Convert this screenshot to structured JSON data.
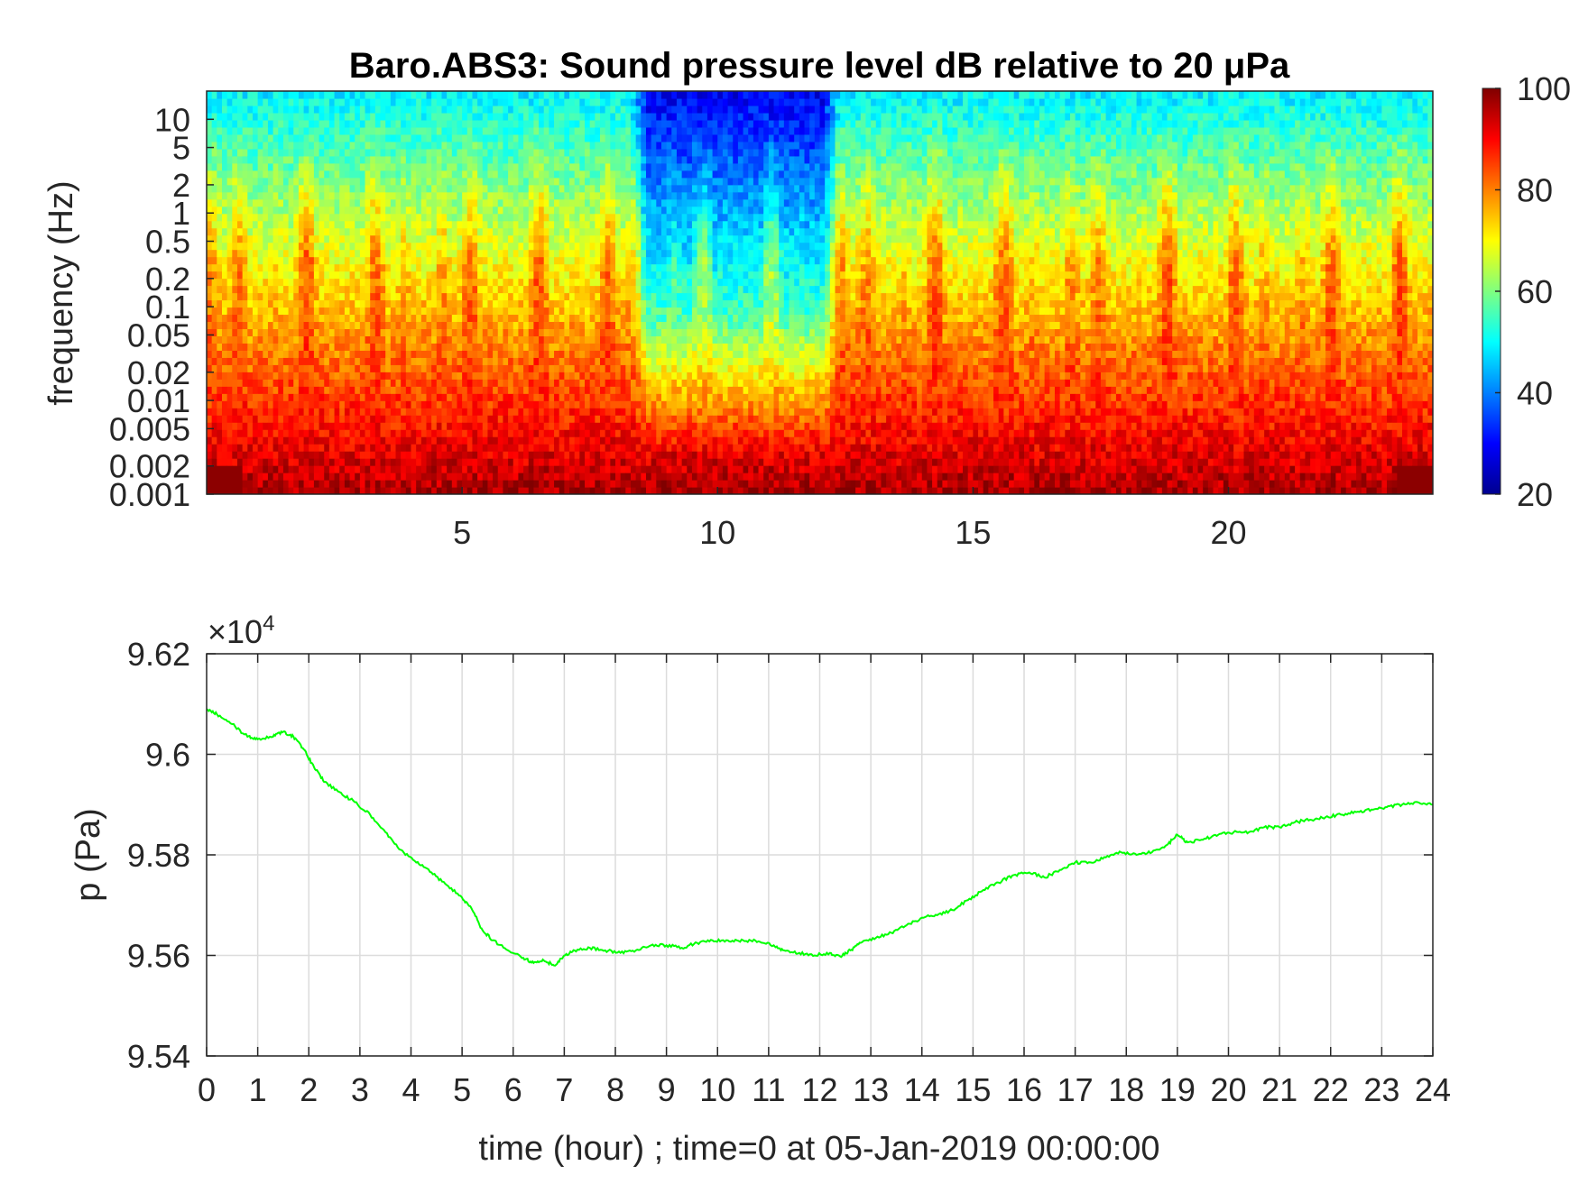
{
  "chart_data": [
    {
      "type": "heatmap",
      "title": "Baro.ABS3: Sound pressure level dB relative to 20 μPa",
      "ylabel": "frequency (Hz)",
      "xlabel": "",
      "x_tick_labels": [
        "5",
        "10",
        "15",
        "20"
      ],
      "x_ticks": [
        5,
        10,
        15,
        20
      ],
      "xlim": [
        0,
        24
      ],
      "y_scale": "log",
      "y_tick_labels": [
        "0.001",
        "0.002",
        "0.005",
        "0.01",
        "0.02",
        "0.05",
        "0.1",
        "0.2",
        "0.5",
        "1",
        "2",
        "5",
        "10"
      ],
      "y_ticks": [
        0.001,
        0.002,
        0.005,
        0.01,
        0.02,
        0.05,
        0.1,
        0.2,
        0.5,
        1,
        2,
        5,
        10
      ],
      "ylim": [
        0.001,
        20
      ],
      "colormap": "jet",
      "colorbar": {
        "range": [
          20,
          100
        ],
        "tick_labels": [
          "100",
          "80",
          "60",
          "40",
          "20"
        ],
        "ticks": [
          100,
          80,
          60,
          40,
          20
        ]
      },
      "quiet_period_hours": [
        8.3,
        12.4
      ]
    },
    {
      "type": "line",
      "title": "",
      "xlabel": "time (hour) ; time=0 at 05-Jan-2019 00:00:00",
      "ylabel": "p (Pa)",
      "exponent_label": "×10",
      "exponent_power": "4",
      "x_tick_labels": [
        "0",
        "1",
        "2",
        "3",
        "4",
        "5",
        "6",
        "7",
        "8",
        "9",
        "10",
        "11",
        "12",
        "13",
        "14",
        "15",
        "16",
        "17",
        "18",
        "19",
        "20",
        "21",
        "22",
        "23",
        "24"
      ],
      "y_tick_labels": [
        "9.62",
        "9.6",
        "9.58",
        "9.56",
        "9.54"
      ],
      "y_ticks": [
        96200,
        96000,
        95800,
        95600,
        95400
      ],
      "xlim": [
        0,
        24
      ],
      "ylim": [
        95400,
        96200
      ],
      "grid": true,
      "line_color": "#00ff00",
      "series": [
        {
          "x": [
            0,
            0.2,
            0.5,
            0.8,
            1.0,
            1.3,
            1.5,
            1.7,
            1.9,
            2.1,
            2.3,
            2.6,
            2.9,
            3.2,
            3.5,
            3.8,
            4.1,
            4.4,
            4.7,
            5.0,
            5.2,
            5.4,
            5.6,
            5.9,
            6.2,
            6.4,
            6.6,
            6.8,
            7.0,
            7.2,
            7.5,
            7.8,
            8.1,
            8.4,
            8.7,
            9.0,
            9.3,
            9.6,
            9.9,
            10.2,
            10.5,
            10.8,
            11.1,
            11.3,
            11.6,
            11.9,
            12.2,
            12.4,
            12.6,
            12.8,
            13.1,
            13.4,
            13.7,
            14.0,
            14.3,
            14.6,
            14.9,
            15.2,
            15.5,
            15.8,
            16.1,
            16.4,
            16.7,
            17.0,
            17.3,
            17.6,
            17.9,
            18.2,
            18.5,
            18.8,
            19.0,
            19.2,
            19.5,
            19.8,
            20.1,
            20.4,
            20.7,
            21.0,
            21.3,
            21.6,
            21.9,
            22.2,
            22.5,
            22.8,
            23.1,
            23.4,
            23.7,
            24.0
          ],
          "y": [
            96090,
            96080,
            96060,
            96035,
            96030,
            96035,
            96045,
            96035,
            96010,
            95975,
            95945,
            95925,
            95905,
            95880,
            95845,
            95810,
            95785,
            95765,
            95740,
            95715,
            95690,
            95650,
            95630,
            95610,
            95595,
            95585,
            95590,
            95580,
            95600,
            95610,
            95615,
            95610,
            95605,
            95610,
            95620,
            95620,
            95615,
            95625,
            95630,
            95630,
            95630,
            95628,
            95620,
            95610,
            95605,
            95600,
            95605,
            95598,
            95610,
            95625,
            95635,
            95645,
            95660,
            95675,
            95680,
            95690,
            95710,
            95730,
            95745,
            95760,
            95765,
            95755,
            95770,
            95785,
            95785,
            95795,
            95805,
            95800,
            95805,
            95820,
            95840,
            95825,
            95830,
            95840,
            95845,
            95845,
            95855,
            95855,
            95865,
            95870,
            95875,
            95880,
            95885,
            95890,
            95895,
            95900,
            95905,
            95900
          ]
        }
      ]
    }
  ]
}
